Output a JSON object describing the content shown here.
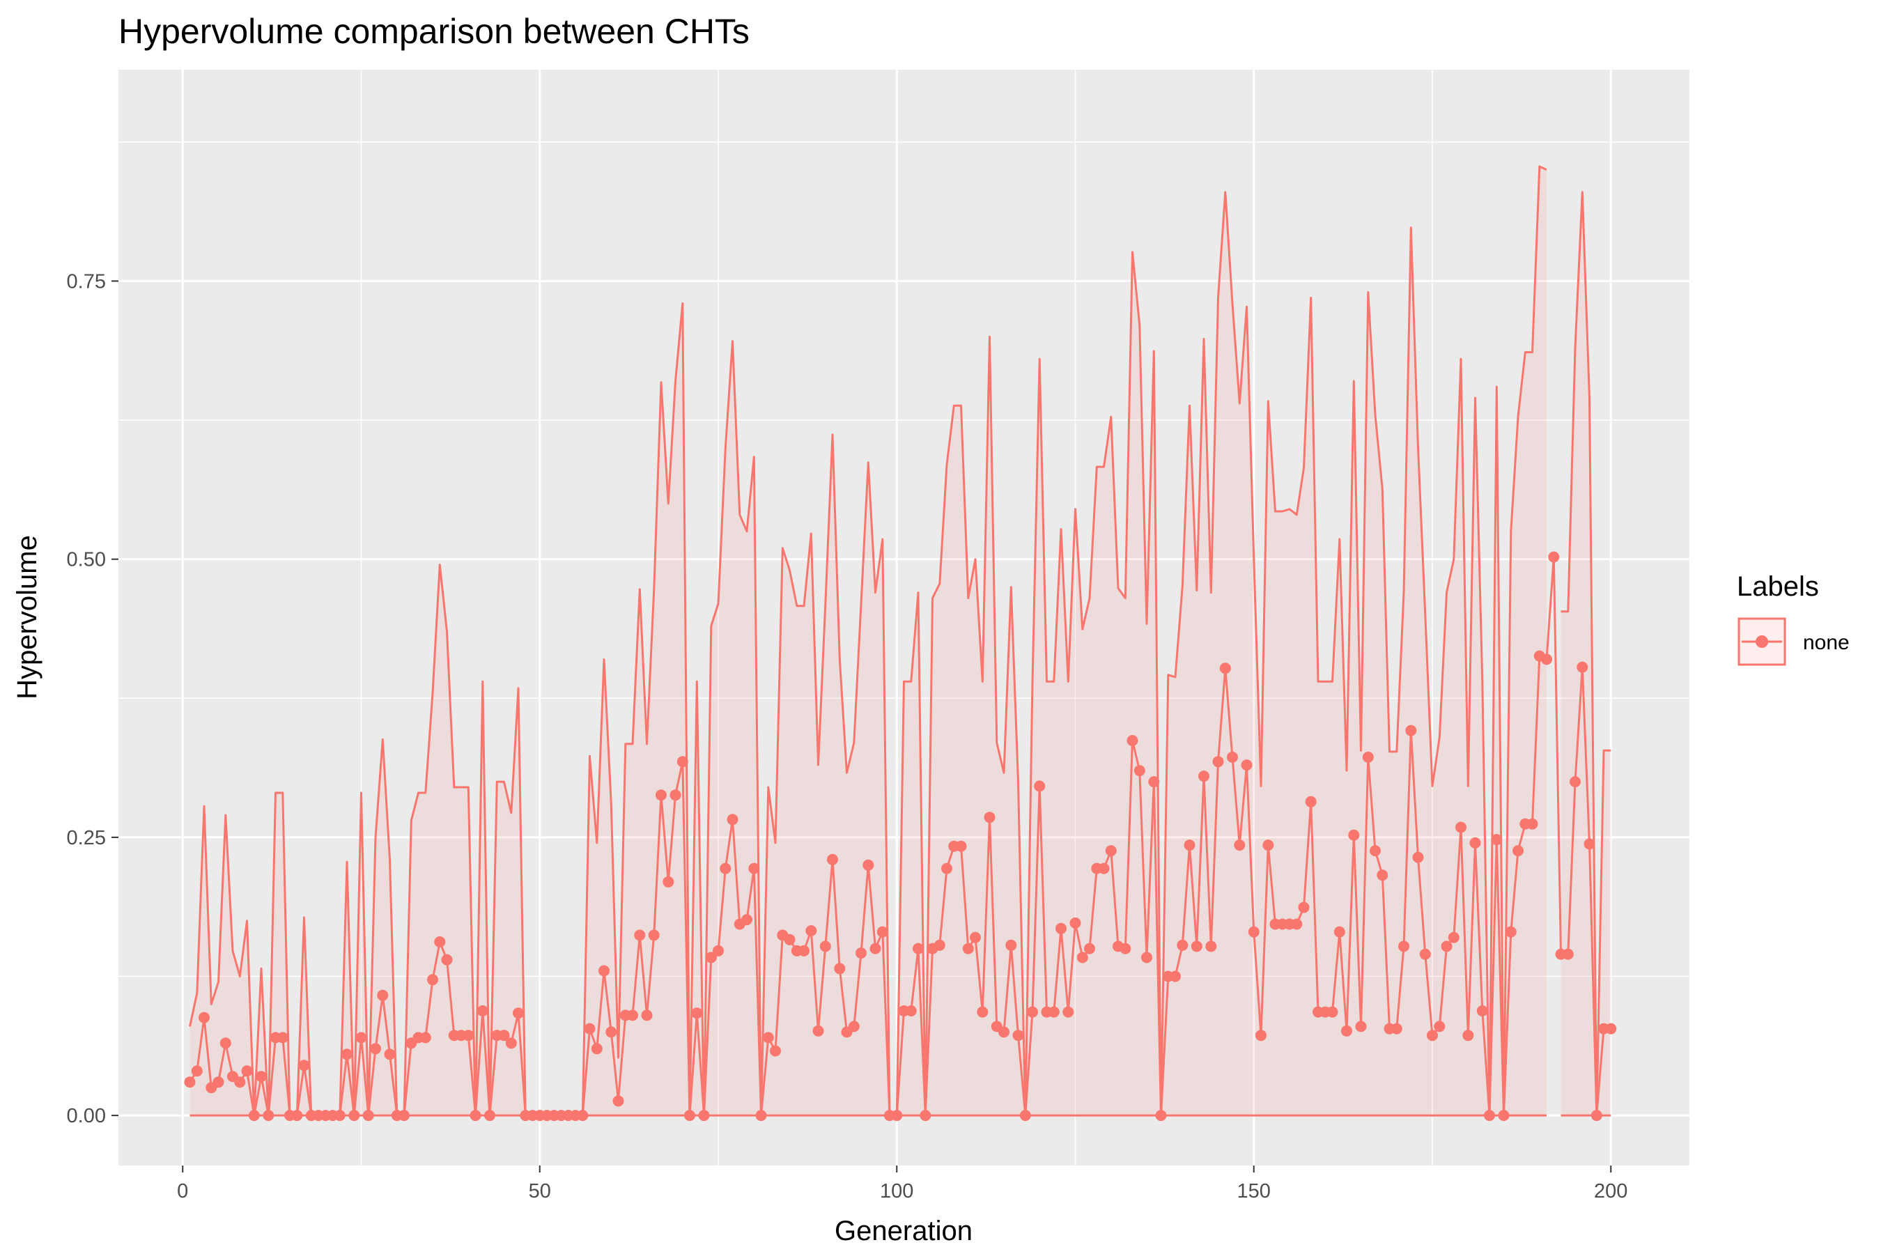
{
  "chart_data": {
    "type": "line",
    "title": "Hypervolume comparison between CHTs",
    "xlabel": "Generation",
    "ylabel": "Hypervolume",
    "xlim": [
      -9,
      211
    ],
    "ylim": [
      -0.045,
      0.94
    ],
    "x_ticks": [
      0,
      50,
      100,
      150,
      200
    ],
    "y_ticks": [
      0.0,
      0.25,
      0.5,
      0.75
    ],
    "y_tick_labels": [
      "0.00",
      "0.25",
      "0.50",
      "0.75"
    ],
    "grid": true,
    "legend": {
      "title": "Labels",
      "position": "right",
      "entries": [
        "none"
      ]
    },
    "colors": {
      "series": "#f8766d",
      "ribbon": "rgba(248,118,109,0.12)",
      "panel": "#ebebeb",
      "grid": "#ffffff"
    },
    "series": [
      {
        "name": "none",
        "x": [
          1,
          2,
          3,
          4,
          5,
          6,
          7,
          8,
          9,
          10,
          11,
          12,
          13,
          14,
          15,
          16,
          17,
          18,
          19,
          20,
          21,
          22,
          23,
          24,
          25,
          26,
          27,
          28,
          29,
          30,
          31,
          32,
          33,
          34,
          35,
          36,
          37,
          38,
          39,
          40,
          41,
          42,
          43,
          44,
          45,
          46,
          47,
          48,
          49,
          50,
          51,
          52,
          53,
          54,
          55,
          56,
          57,
          58,
          59,
          60,
          61,
          62,
          63,
          64,
          65,
          66,
          67,
          68,
          69,
          70,
          71,
          72,
          73,
          74,
          75,
          76,
          77,
          78,
          79,
          80,
          81,
          82,
          83,
          84,
          85,
          86,
          87,
          88,
          89,
          90,
          91,
          92,
          93,
          94,
          95,
          96,
          97,
          98,
          99,
          100,
          101,
          102,
          103,
          104,
          105,
          106,
          107,
          108,
          109,
          110,
          111,
          112,
          113,
          114,
          115,
          116,
          117,
          118,
          119,
          120,
          121,
          122,
          123,
          124,
          125,
          126,
          127,
          128,
          129,
          130,
          131,
          132,
          133,
          134,
          135,
          136,
          137,
          138,
          139,
          140,
          141,
          142,
          143,
          144,
          145,
          146,
          147,
          148,
          149,
          150,
          151,
          152,
          153,
          154,
          155,
          156,
          157,
          158,
          159,
          160,
          161,
          162,
          163,
          164,
          165,
          166,
          167,
          168,
          169,
          170,
          171,
          172,
          173,
          174,
          175,
          176,
          177,
          178,
          179,
          180,
          181,
          182,
          183,
          184,
          185,
          186,
          187,
          188,
          189,
          190,
          191,
          192,
          193,
          194,
          195,
          196,
          197,
          198,
          199,
          200
        ],
        "y": [
          0.03,
          0.04,
          0.088,
          0.025,
          0.03,
          0.065,
          0.035,
          0.03,
          0.04,
          0.0,
          0.035,
          0.0,
          0.07,
          0.07,
          0.0,
          0.0,
          0.045,
          0.0,
          0.0,
          0.0,
          0.0,
          0.0,
          0.055,
          0.0,
          0.07,
          0.0,
          0.06,
          0.108,
          0.055,
          0.0,
          0.0,
          0.065,
          0.07,
          0.07,
          0.122,
          0.156,
          0.14,
          0.072,
          0.072,
          0.072,
          0.0,
          0.094,
          0.0,
          0.072,
          0.072,
          0.065,
          0.092,
          0.0,
          0.0,
          0.0,
          0.0,
          0.0,
          0.0,
          0.0,
          0.0,
          0.0,
          0.078,
          0.06,
          0.13,
          0.075,
          0.013,
          0.09,
          0.09,
          0.162,
          0.09,
          0.162,
          0.288,
          0.21,
          0.288,
          0.318,
          0.0,
          0.092,
          0.0,
          0.142,
          0.148,
          0.222,
          0.266,
          0.172,
          0.176,
          0.222,
          0.0,
          0.07,
          0.058,
          0.162,
          0.158,
          0.148,
          0.148,
          0.166,
          0.076,
          0.152,
          0.23,
          0.132,
          0.075,
          0.08,
          0.146,
          0.225,
          0.15,
          0.165,
          0.0,
          0.0,
          0.094,
          0.094,
          0.15,
          0.0,
          0.15,
          0.153,
          0.222,
          0.242,
          0.242,
          0.15,
          0.16,
          0.093,
          0.268,
          0.08,
          0.075,
          0.153,
          0.072,
          0.0,
          0.093,
          0.296,
          0.093,
          0.093,
          0.168,
          0.093,
          0.173,
          0.142,
          0.15,
          0.222,
          0.222,
          0.238,
          0.152,
          0.15,
          0.337,
          0.31,
          0.142,
          0.3,
          0.0,
          0.125,
          0.125,
          0.153,
          0.243,
          0.152,
          0.305,
          0.152,
          0.318,
          0.402,
          0.322,
          0.243,
          0.315,
          0.165,
          0.072,
          0.243,
          0.172,
          0.172,
          0.172,
          0.172,
          0.187,
          0.282,
          0.093,
          0.093,
          0.093,
          0.165,
          0.076,
          0.252,
          0.08,
          0.322,
          0.238,
          0.216,
          0.078,
          0.078,
          0.152,
          0.346,
          0.232,
          0.145,
          0.072,
          0.08,
          0.152,
          0.16,
          0.259,
          0.072,
          0.245,
          0.094,
          0.0,
          0.248,
          0.0,
          0.165,
          0.238,
          0.262,
          0.262,
          0.413,
          0.41,
          0.502,
          0.145,
          0.145,
          0.3,
          0.403,
          0.244,
          0.0,
          0.078,
          0.078
        ],
        "ymax": [
          0.08,
          0.11,
          0.278,
          0.1,
          0.12,
          0.27,
          0.148,
          0.125,
          0.175,
          0.0,
          0.132,
          0.0,
          0.29,
          0.29,
          0.0,
          0.0,
          0.178,
          0.0,
          0.0,
          0.0,
          0.0,
          0.0,
          0.228,
          0.0,
          0.29,
          0.0,
          0.25,
          0.338,
          0.23,
          0.0,
          0.0,
          0.265,
          0.29,
          0.29,
          0.38,
          0.495,
          0.435,
          0.295,
          0.295,
          0.295,
          0.0,
          0.39,
          0.0,
          0.3,
          0.3,
          0.272,
          0.384,
          0.0,
          0.0,
          0.0,
          0.0,
          0.0,
          0.0,
          0.0,
          0.0,
          0.0,
          0.323,
          0.245,
          0.41,
          0.28,
          0.052,
          0.334,
          0.334,
          0.473,
          0.334,
          0.472,
          0.659,
          0.55,
          0.66,
          0.73,
          0.0,
          0.39,
          0.0,
          0.44,
          0.46,
          0.6,
          0.696,
          0.54,
          0.525,
          0.592,
          0.0,
          0.295,
          0.245,
          0.51,
          0.49,
          0.458,
          0.458,
          0.523,
          0.315,
          0.46,
          0.612,
          0.41,
          0.308,
          0.335,
          0.46,
          0.587,
          0.47,
          0.518,
          0.0,
          0.0,
          0.39,
          0.39,
          0.47,
          0.0,
          0.465,
          0.478,
          0.585,
          0.638,
          0.638,
          0.465,
          0.5,
          0.39,
          0.7,
          0.335,
          0.308,
          0.475,
          0.3,
          0.0,
          0.39,
          0.68,
          0.39,
          0.39,
          0.527,
          0.39,
          0.545,
          0.437,
          0.465,
          0.583,
          0.583,
          0.628,
          0.474,
          0.465,
          0.776,
          0.71,
          0.442,
          0.687,
          0.0,
          0.396,
          0.394,
          0.476,
          0.638,
          0.472,
          0.698,
          0.47,
          0.735,
          0.83,
          0.73,
          0.64,
          0.727,
          0.5,
          0.296,
          0.642,
          0.543,
          0.543,
          0.545,
          0.54,
          0.582,
          0.735,
          0.39,
          0.39,
          0.39,
          0.518,
          0.31,
          0.66,
          0.328,
          0.74,
          0.63,
          0.563,
          0.327,
          0.327,
          0.47,
          0.798,
          0.6,
          0.45,
          0.296,
          0.34,
          0.47,
          0.5,
          0.68,
          0.296,
          0.645,
          0.39,
          0.0,
          0.655,
          0.0,
          0.525,
          0.628,
          0.686,
          0.686,
          0.853,
          0.85,
          null,
          0.453,
          0.453,
          0.69,
          0.83,
          0.645,
          0.0,
          0.328,
          0.328
        ],
        "ymin": [
          0.0,
          0.0,
          0.0,
          0.0,
          0.0,
          0.0,
          0.0,
          0.0,
          0.0,
          0.0,
          0.0,
          0.0,
          0.0,
          0.0,
          0.0,
          0.0,
          0.0,
          0.0,
          0.0,
          0.0,
          0.0,
          0.0,
          0.0,
          0.0,
          0.0,
          0.0,
          0.0,
          0.0,
          0.0,
          0.0,
          0.0,
          0.0,
          0.0,
          0.0,
          0.0,
          0.0,
          0.0,
          0.0,
          0.0,
          0.0,
          0.0,
          0.0,
          0.0,
          0.0,
          0.0,
          0.0,
          0.0,
          0.0,
          0.0,
          0.0,
          0.0,
          0.0,
          0.0,
          0.0,
          0.0,
          0.0,
          0.0,
          0.0,
          0.0,
          0.0,
          0.0,
          0.0,
          0.0,
          0.0,
          0.0,
          0.0,
          0.0,
          0.0,
          0.0,
          0.0,
          0.0,
          0.0,
          0.0,
          0.0,
          0.0,
          0.0,
          0.0,
          0.0,
          0.0,
          0.0,
          0.0,
          0.0,
          0.0,
          0.0,
          0.0,
          0.0,
          0.0,
          0.0,
          0.0,
          0.0,
          0.0,
          0.0,
          0.0,
          0.0,
          0.0,
          0.0,
          0.0,
          0.0,
          0.0,
          0.0,
          0.0,
          0.0,
          0.0,
          0.0,
          0.0,
          0.0,
          0.0,
          0.0,
          0.0,
          0.0,
          0.0,
          0.0,
          0.0,
          0.0,
          0.0,
          0.0,
          0.0,
          0.0,
          0.0,
          0.0,
          0.0,
          0.0,
          0.0,
          0.0,
          0.0,
          0.0,
          0.0,
          0.0,
          0.0,
          0.0,
          0.0,
          0.0,
          0.0,
          0.0,
          0.0,
          0.0,
          0.0,
          0.0,
          0.0,
          0.0,
          0.0,
          0.0,
          0.0,
          0.0,
          0.0,
          0.0,
          0.0,
          0.0,
          0.0,
          0.0,
          0.0,
          0.0,
          0.0,
          0.0,
          0.0,
          0.0,
          0.0,
          0.0,
          0.0,
          0.0,
          0.0,
          0.0,
          0.0,
          0.0,
          0.0,
          0.0,
          0.0,
          0.0,
          0.0,
          0.0,
          0.0,
          0.0,
          0.0,
          0.0,
          0.0,
          0.0,
          0.0,
          0.0,
          0.0,
          0.0,
          0.0,
          0.0,
          0.0,
          0.0,
          0.0,
          0.0,
          0.0,
          0.0,
          0.0,
          0.0,
          0.0,
          null,
          0.0,
          0.0,
          0.0,
          0.0,
          0.0,
          0.0,
          0.0,
          0.0
        ]
      }
    ]
  }
}
